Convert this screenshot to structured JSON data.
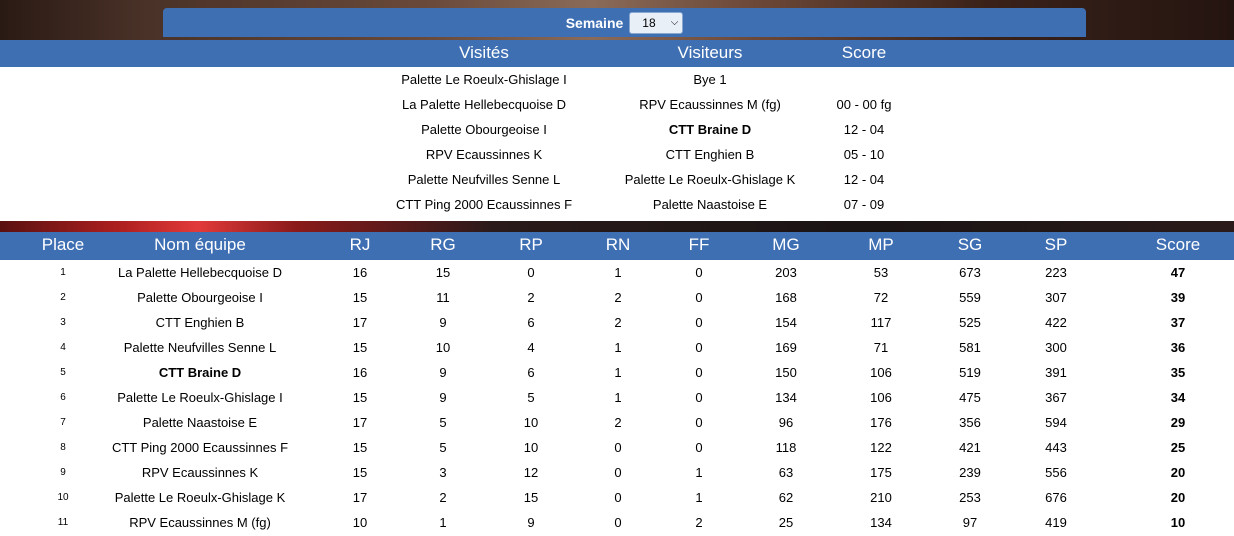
{
  "semaine": {
    "label": "Semaine",
    "value": "18"
  },
  "matches": {
    "headers": {
      "home": "Visités",
      "away": "Visiteurs",
      "score": "Score"
    },
    "rows": [
      {
        "home": "Palette Le Roeulx-Ghislage I",
        "away": "Bye 1",
        "score": "",
        "bold_home": false,
        "bold_away": false
      },
      {
        "home": "La Palette Hellebecquoise D",
        "away": "RPV Ecaussinnes M (fg)",
        "score": "00 - 00 fg",
        "bold_home": false,
        "bold_away": false
      },
      {
        "home": "Palette Obourgeoise I",
        "away": "CTT Braine D",
        "score": "12 - 04",
        "bold_home": false,
        "bold_away": true
      },
      {
        "home": "RPV Ecaussinnes K",
        "away": "CTT Enghien B",
        "score": "05 - 10",
        "bold_home": false,
        "bold_away": false
      },
      {
        "home": "Palette Neufvilles Senne L",
        "away": "Palette Le Roeulx-Ghislage K",
        "score": "12 - 04",
        "bold_home": false,
        "bold_away": false
      },
      {
        "home": "CTT Ping 2000 Ecaussinnes F",
        "away": "Palette Naastoise E",
        "score": "07 - 09",
        "bold_home": false,
        "bold_away": false
      }
    ]
  },
  "standings": {
    "headers": {
      "place": "Place",
      "team": "Nom équipe",
      "rj": "RJ",
      "rg": "RG",
      "rp": "RP",
      "rn": "RN",
      "ff": "FF",
      "mg": "MG",
      "mp": "MP",
      "sg": "SG",
      "sp": "SP",
      "score": "Score"
    },
    "rows": [
      {
        "place": "1",
        "team": "La Palette Hellebecquoise D",
        "rj": "16",
        "rg": "15",
        "rp": "0",
        "rn": "1",
        "ff": "0",
        "mg": "203",
        "mp": "53",
        "sg": "673",
        "sp": "223",
        "score": "47",
        "bold_team": false
      },
      {
        "place": "2",
        "team": "Palette Obourgeoise I",
        "rj": "15",
        "rg": "11",
        "rp": "2",
        "rn": "2",
        "ff": "0",
        "mg": "168",
        "mp": "72",
        "sg": "559",
        "sp": "307",
        "score": "39",
        "bold_team": false
      },
      {
        "place": "3",
        "team": "CTT Enghien B",
        "rj": "17",
        "rg": "9",
        "rp": "6",
        "rn": "2",
        "ff": "0",
        "mg": "154",
        "mp": "117",
        "sg": "525",
        "sp": "422",
        "score": "37",
        "bold_team": false
      },
      {
        "place": "4",
        "team": "Palette Neufvilles Senne L",
        "rj": "15",
        "rg": "10",
        "rp": "4",
        "rn": "1",
        "ff": "0",
        "mg": "169",
        "mp": "71",
        "sg": "581",
        "sp": "300",
        "score": "36",
        "bold_team": false
      },
      {
        "place": "5",
        "team": "CTT Braine D",
        "rj": "16",
        "rg": "9",
        "rp": "6",
        "rn": "1",
        "ff": "0",
        "mg": "150",
        "mp": "106",
        "sg": "519",
        "sp": "391",
        "score": "35",
        "bold_team": true
      },
      {
        "place": "6",
        "team": "Palette Le Roeulx-Ghislage I",
        "rj": "15",
        "rg": "9",
        "rp": "5",
        "rn": "1",
        "ff": "0",
        "mg": "134",
        "mp": "106",
        "sg": "475",
        "sp": "367",
        "score": "34",
        "bold_team": false
      },
      {
        "place": "7",
        "team": "Palette Naastoise E",
        "rj": "17",
        "rg": "5",
        "rp": "10",
        "rn": "2",
        "ff": "0",
        "mg": "96",
        "mp": "176",
        "sg": "356",
        "sp": "594",
        "score": "29",
        "bold_team": false
      },
      {
        "place": "8",
        "team": "CTT Ping 2000 Ecaussinnes F",
        "rj": "15",
        "rg": "5",
        "rp": "10",
        "rn": "0",
        "ff": "0",
        "mg": "118",
        "mp": "122",
        "sg": "421",
        "sp": "443",
        "score": "25",
        "bold_team": false
      },
      {
        "place": "9",
        "team": "RPV Ecaussinnes K",
        "rj": "15",
        "rg": "3",
        "rp": "12",
        "rn": "0",
        "ff": "1",
        "mg": "63",
        "mp": "175",
        "sg": "239",
        "sp": "556",
        "score": "20",
        "bold_team": false
      },
      {
        "place": "10",
        "team": "Palette Le Roeulx-Ghislage K",
        "rj": "17",
        "rg": "2",
        "rp": "15",
        "rn": "0",
        "ff": "1",
        "mg": "62",
        "mp": "210",
        "sg": "253",
        "sp": "676",
        "score": "20",
        "bold_team": false
      },
      {
        "place": "11",
        "team": "RPV Ecaussinnes M (fg)",
        "rj": "10",
        "rg": "1",
        "rp": "9",
        "rn": "0",
        "ff": "2",
        "mg": "25",
        "mp": "134",
        "sg": "97",
        "sp": "419",
        "score": "10",
        "bold_team": false
      }
    ]
  },
  "colors": {
    "header_blue": "#3f6fb3"
  }
}
